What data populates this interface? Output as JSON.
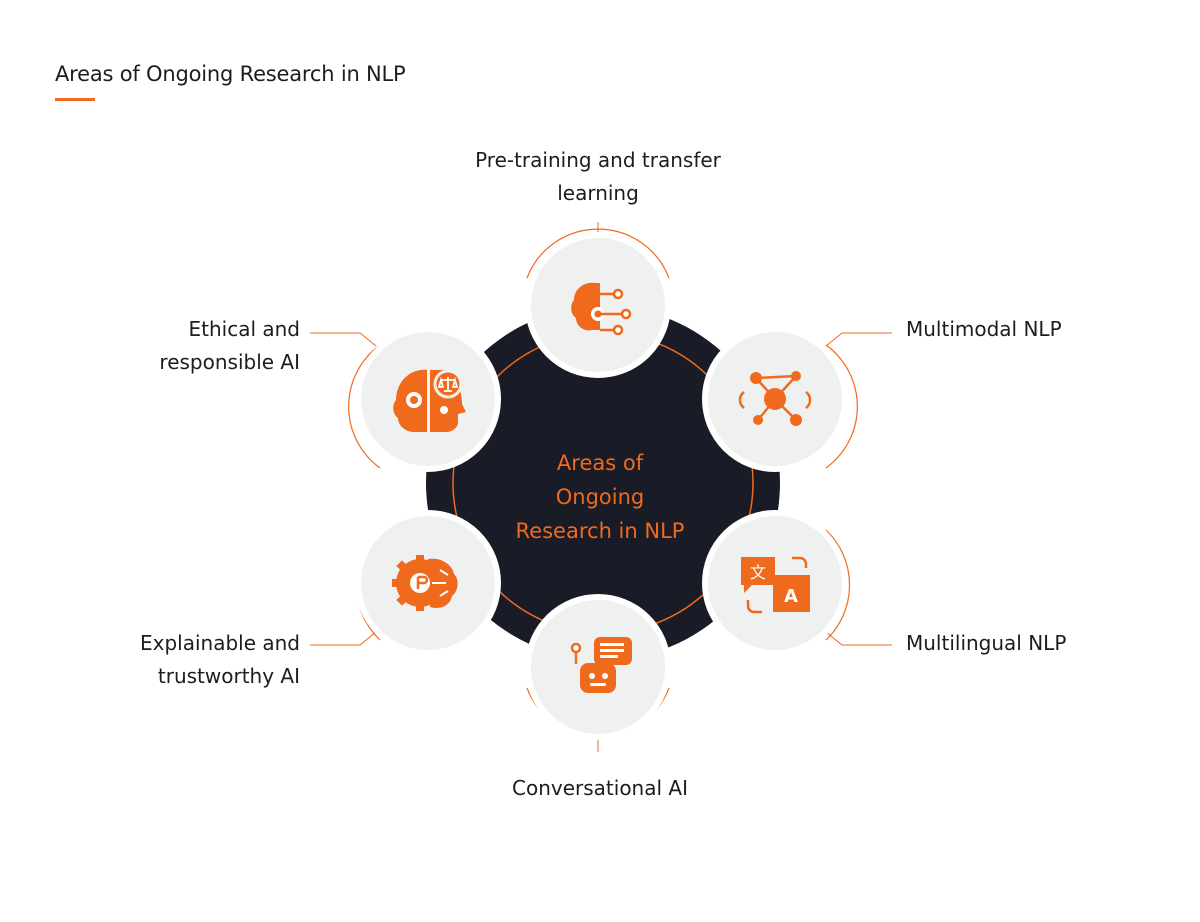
{
  "header": {
    "title": "Areas of Ongoing Research in NLP"
  },
  "center": {
    "lines": [
      "Areas of",
      "Ongoing",
      "Research in NLP"
    ]
  },
  "nodes": [
    {
      "id": "pretraining",
      "lines": [
        "Pre-training and transfer",
        "learning"
      ],
      "icon": "brain-circuit-gear-icon"
    },
    {
      "id": "multimodal",
      "lines": [
        "Multimodal NLP"
      ],
      "icon": "network-nodes-icon"
    },
    {
      "id": "multilingual",
      "lines": [
        "Multilingual NLP"
      ],
      "icon": "translate-icon"
    },
    {
      "id": "conversational",
      "lines": [
        "Conversational AI"
      ],
      "icon": "chatbot-icon"
    },
    {
      "id": "explainable",
      "lines": [
        "Explainable and",
        "trustworthy AI"
      ],
      "icon": "brain-gear-icon"
    },
    {
      "id": "ethical",
      "lines": [
        "Ethical and",
        "responsible AI"
      ],
      "icon": "robot-head-scales-icon"
    }
  ],
  "colors": {
    "accent": "#f06a1d",
    "hub": "#191b26",
    "node_fill": "#eef1f0",
    "text": "#1c1c22"
  }
}
